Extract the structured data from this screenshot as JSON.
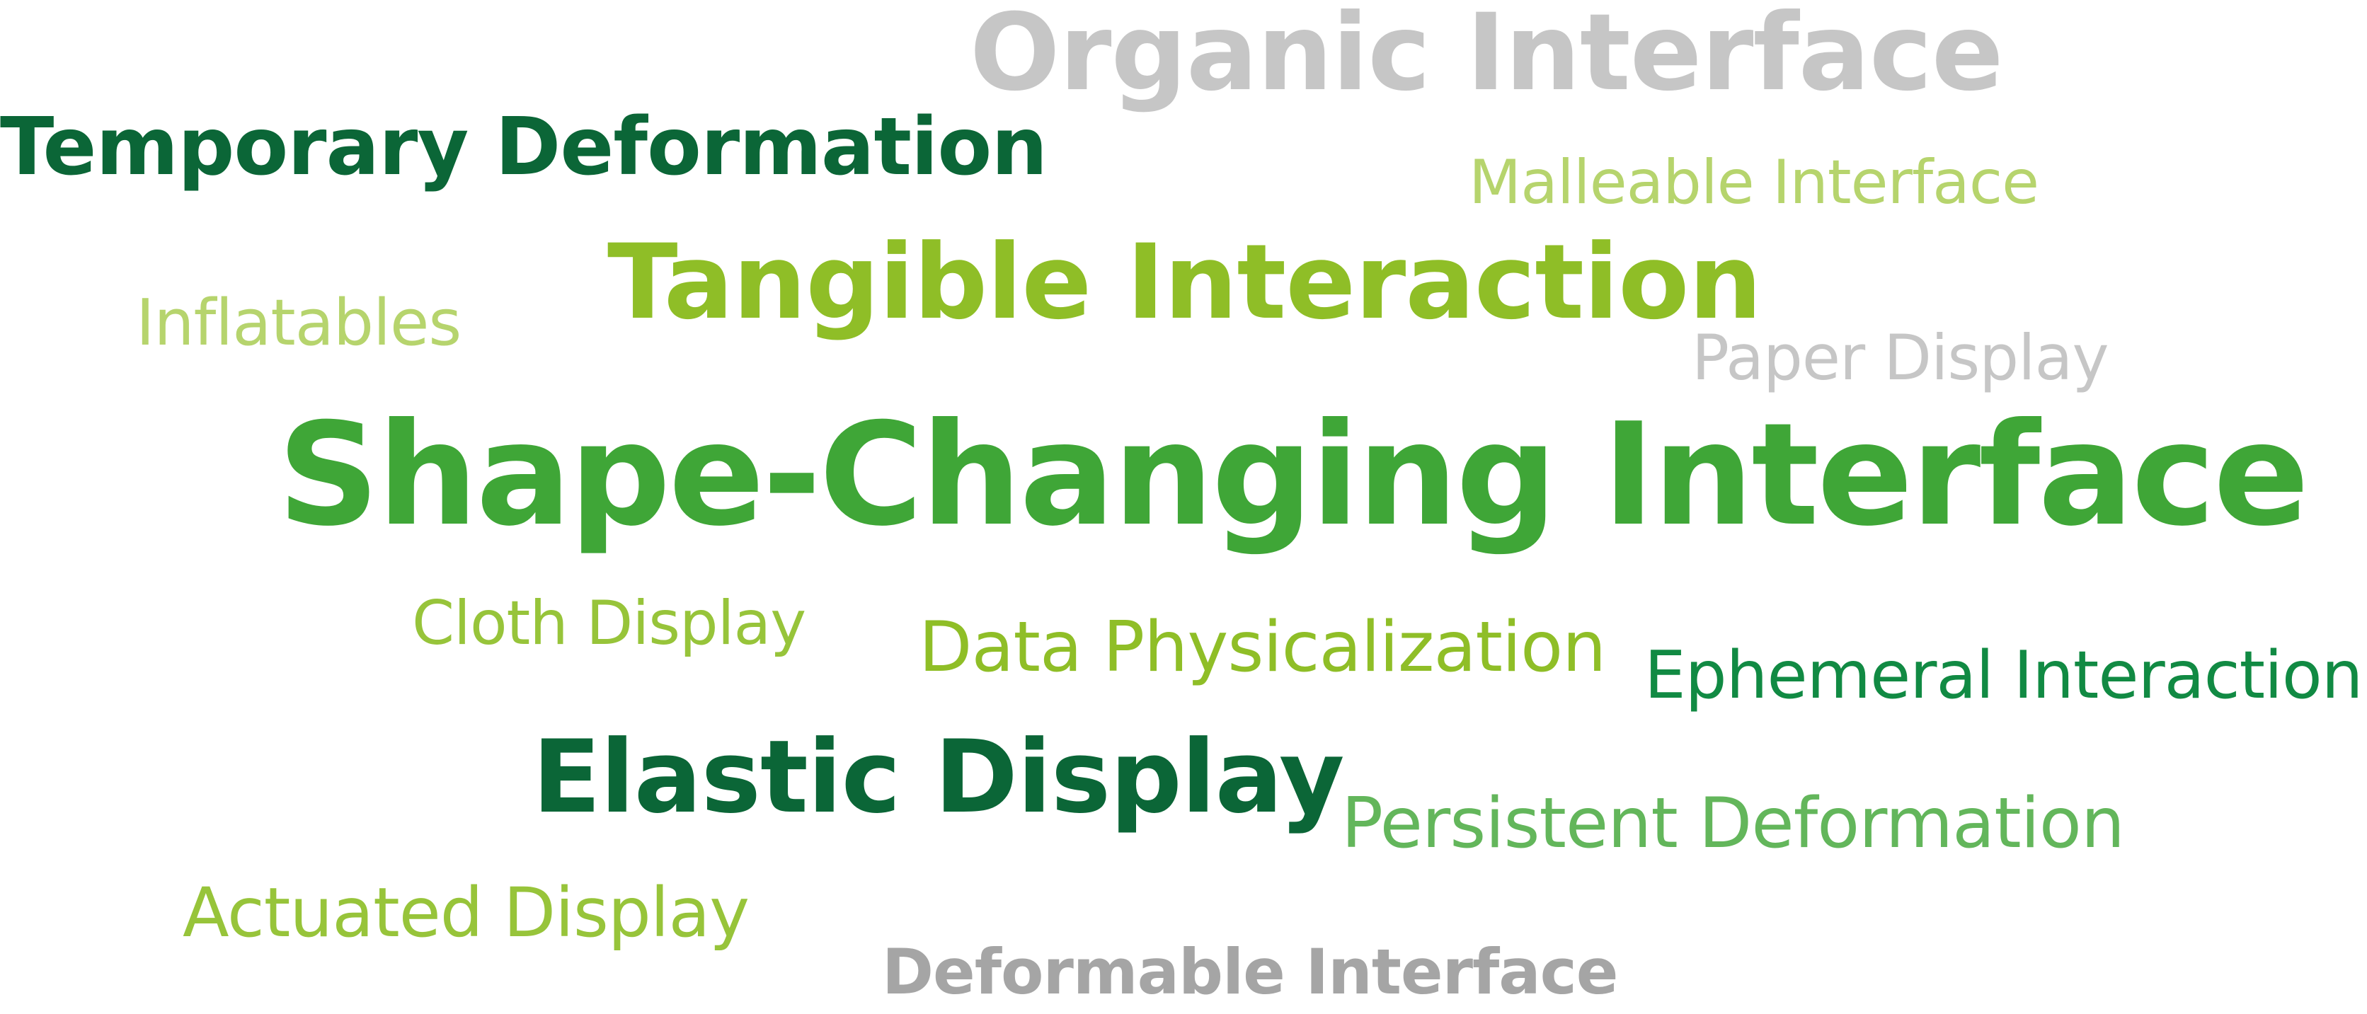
{
  "word_cloud": {
    "words": [
      {
        "id": "organic",
        "text": "Organic Interface",
        "color": "#c6c6c6"
      },
      {
        "id": "temporary",
        "text": "Temporary Deformation",
        "color": "#0b6637"
      },
      {
        "id": "malleable",
        "text": "Malleable Interface",
        "color": "#b6d46d"
      },
      {
        "id": "tangible",
        "text": "Tangible Interaction",
        "color": "#8fbe27"
      },
      {
        "id": "inflatables",
        "text": "Inflatables",
        "color": "#b6d46d"
      },
      {
        "id": "paper",
        "text": "Paper Display",
        "color": "#c6c6c6"
      },
      {
        "id": "shape",
        "text": "Shape-Changing Interface",
        "color": "#3fa637"
      },
      {
        "id": "cloth",
        "text": "Cloth Display",
        "color": "#97c43a"
      },
      {
        "id": "data",
        "text": "Data Physicalization",
        "color": "#8fbe27"
      },
      {
        "id": "ephemeral",
        "text": "Ephemeral Interaction",
        "color": "#118a43"
      },
      {
        "id": "elastic",
        "text": "Elastic Display",
        "color": "#0b6637"
      },
      {
        "id": "persistent",
        "text": "Persistent Deformation",
        "color": "#63b65b"
      },
      {
        "id": "actuated",
        "text": "Actuated Display",
        "color": "#97c43a"
      },
      {
        "id": "deformable",
        "text": "Deformable Interface",
        "color": "#a5a5a5"
      }
    ]
  }
}
